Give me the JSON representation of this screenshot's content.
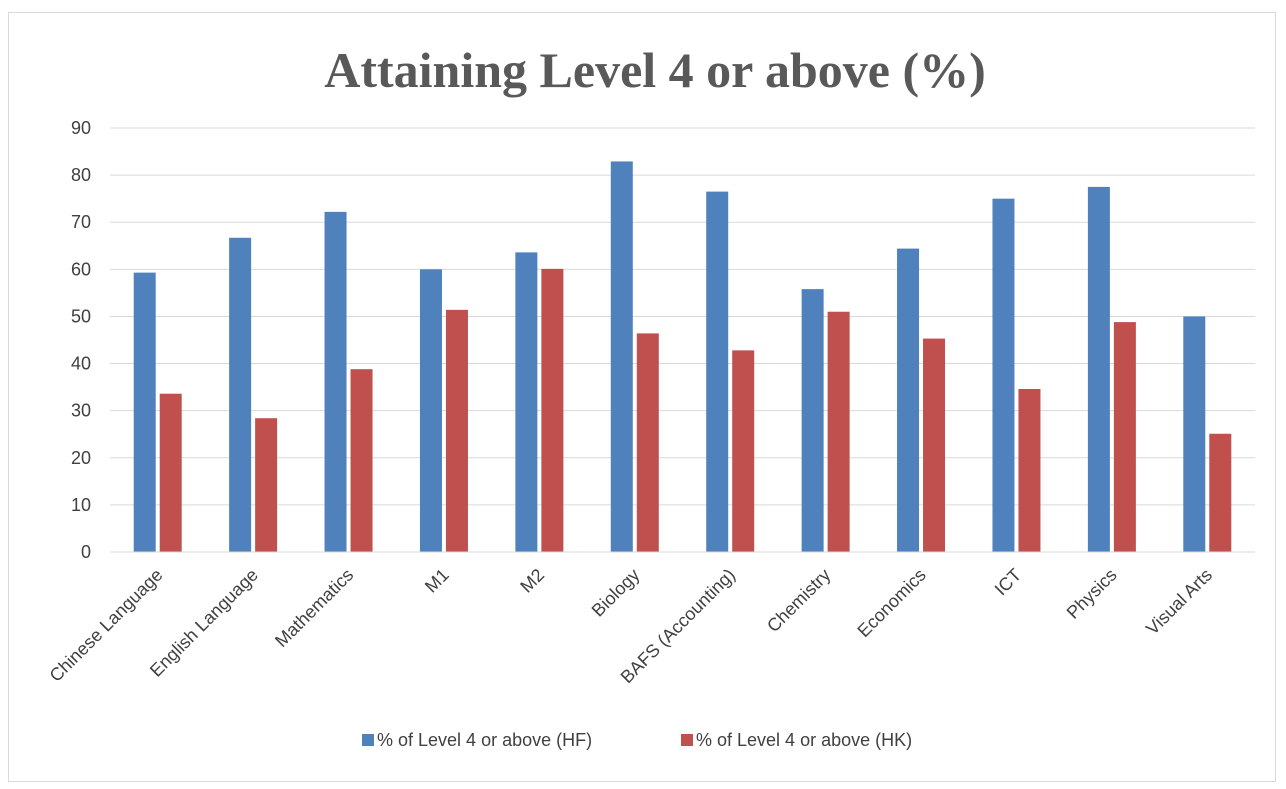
{
  "chart_data": {
    "type": "bar",
    "title": "Attaining Level 4 or above (%)",
    "xlabel": "",
    "ylabel": "",
    "ylim": [
      0,
      90
    ],
    "yticks": [
      0,
      10,
      20,
      30,
      40,
      50,
      60,
      70,
      80,
      90
    ],
    "grid": true,
    "legend_position": "bottom",
    "categories": [
      "Chinese Language",
      "English Language",
      "Mathematics",
      "M1",
      "M2",
      "Biology",
      "BAFS (Accounting)",
      "Chemistry",
      "Economics",
      "ICT",
      "Physics",
      "Visual Arts"
    ],
    "series": [
      {
        "name": "% of Level 4 or above (HF)",
        "color": "#4f81bd",
        "values": [
          59.3,
          66.7,
          72.2,
          60.0,
          63.6,
          82.9,
          76.5,
          55.8,
          64.4,
          75.0,
          77.5,
          50.0
        ]
      },
      {
        "name": "% of Level 4 or above (HK)",
        "color": "#c0504d",
        "values": [
          33.6,
          28.4,
          38.8,
          51.4,
          60.1,
          46.4,
          42.8,
          51.0,
          45.3,
          34.6,
          48.8,
          25.1
        ]
      }
    ]
  }
}
